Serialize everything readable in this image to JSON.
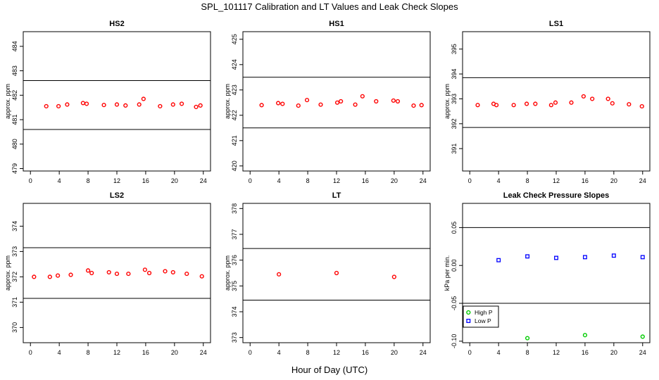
{
  "page": {
    "title": "SPL_101117  Calibration and LT Values and Leak Check Slopes",
    "xlabel": "Hour of Day (UTC)"
  },
  "chart_data": [
    {
      "type": "scatter",
      "title": "HS2",
      "ylabel": "approx. ppm",
      "xlim": [
        -1,
        25
      ],
      "xticks": [
        0,
        4,
        8,
        12,
        16,
        20,
        24
      ],
      "ylim": [
        478.9,
        484.6
      ],
      "yticks": [
        479,
        480,
        481,
        482,
        483,
        484
      ],
      "hlines": [
        480.6,
        482.6
      ],
      "grid": false,
      "series": [
        {
          "color": "#ff0000",
          "marker": "circle",
          "points": [
            [
              2.2,
              481.55
            ],
            [
              3.9,
              481.55
            ],
            [
              5.1,
              481.62
            ],
            [
              7.3,
              481.68
            ],
            [
              7.8,
              481.65
            ],
            [
              10.2,
              481.6
            ],
            [
              12.0,
              481.62
            ],
            [
              13.2,
              481.58
            ],
            [
              15.1,
              481.62
            ],
            [
              15.7,
              481.85
            ],
            [
              18.0,
              481.55
            ],
            [
              19.8,
              481.62
            ],
            [
              21.0,
              481.65
            ],
            [
              23.0,
              481.52
            ],
            [
              23.6,
              481.58
            ]
          ]
        }
      ]
    },
    {
      "type": "scatter",
      "title": "HS1",
      "ylabel": "approx. ppm",
      "xlim": [
        -1,
        25
      ],
      "xticks": [
        0,
        4,
        8,
        12,
        16,
        20,
        24
      ],
      "ylim": [
        419.8,
        425.3
      ],
      "yticks": [
        420,
        421,
        422,
        423,
        424,
        425
      ],
      "hlines": [
        421.5,
        423.5
      ],
      "grid": false,
      "series": [
        {
          "color": "#ff0000",
          "marker": "circle",
          "points": [
            [
              1.6,
              422.4
            ],
            [
              3.9,
              422.48
            ],
            [
              4.5,
              422.45
            ],
            [
              6.7,
              422.38
            ],
            [
              7.9,
              422.6
            ],
            [
              9.8,
              422.42
            ],
            [
              12.1,
              422.5
            ],
            [
              12.6,
              422.55
            ],
            [
              14.6,
              422.42
            ],
            [
              15.6,
              422.75
            ],
            [
              17.5,
              422.55
            ],
            [
              19.9,
              422.58
            ],
            [
              20.5,
              422.55
            ],
            [
              22.7,
              422.38
            ],
            [
              23.8,
              422.4
            ]
          ]
        }
      ]
    },
    {
      "type": "scatter",
      "title": "LS1",
      "ylabel": "approx. ppm",
      "xlim": [
        -1,
        25
      ],
      "xticks": [
        0,
        4,
        8,
        12,
        16,
        20,
        24
      ],
      "ylim": [
        390.1,
        395.7
      ],
      "yticks": [
        391,
        392,
        393,
        394,
        395
      ],
      "hlines": [
        391.85,
        393.85
      ],
      "grid": false,
      "series": [
        {
          "color": "#ff0000",
          "marker": "circle",
          "points": [
            [
              1.1,
              392.75
            ],
            [
              3.3,
              392.8
            ],
            [
              3.7,
              392.75
            ],
            [
              6.1,
              392.75
            ],
            [
              7.9,
              392.8
            ],
            [
              9.1,
              392.8
            ],
            [
              11.3,
              392.75
            ],
            [
              11.9,
              392.85
            ],
            [
              14.1,
              392.85
            ],
            [
              15.8,
              393.1
            ],
            [
              17.0,
              393.0
            ],
            [
              19.2,
              393.0
            ],
            [
              19.8,
              392.82
            ],
            [
              22.1,
              392.78
            ],
            [
              23.9,
              392.7
            ]
          ]
        }
      ]
    },
    {
      "type": "scatter",
      "title": "LS2",
      "ylabel": "approx. ppm",
      "xlim": [
        -1,
        25
      ],
      "xticks": [
        0,
        4,
        8,
        12,
        16,
        20,
        24
      ],
      "ylim": [
        369.4,
        374.9
      ],
      "yticks": [
        370,
        371,
        372,
        373,
        374
      ],
      "hlines": [
        371.15,
        373.15
      ],
      "grid": false,
      "series": [
        {
          "color": "#ff0000",
          "marker": "circle",
          "points": [
            [
              0.5,
              372.0
            ],
            [
              2.7,
              372.0
            ],
            [
              3.8,
              372.05
            ],
            [
              5.6,
              372.08
            ],
            [
              8.0,
              372.25
            ],
            [
              8.5,
              372.15
            ],
            [
              10.9,
              372.18
            ],
            [
              12.0,
              372.12
            ],
            [
              13.6,
              372.12
            ],
            [
              15.9,
              372.28
            ],
            [
              16.5,
              372.15
            ],
            [
              18.7,
              372.22
            ],
            [
              19.8,
              372.18
            ],
            [
              21.7,
              372.12
            ],
            [
              23.8,
              372.02
            ]
          ]
        }
      ]
    },
    {
      "type": "scatter",
      "title": "LT",
      "ylabel": "approx. ppm",
      "xlim": [
        -1,
        25
      ],
      "xticks": [
        0,
        4,
        8,
        12,
        16,
        20,
        24
      ],
      "ylim": [
        372.8,
        378.2
      ],
      "yticks": [
        373,
        374,
        375,
        376,
        377,
        378
      ],
      "hlines": [
        374.45,
        376.45
      ],
      "grid": false,
      "series": [
        {
          "color": "#ff0000",
          "marker": "circle",
          "points": [
            [
              4.0,
              375.45
            ],
            [
              12.0,
              375.5
            ],
            [
              20.0,
              375.35
            ]
          ]
        }
      ]
    },
    {
      "type": "scatter",
      "title": "Leak Check Pressure Slopes",
      "ylabel": "kPa per min.",
      "xlim": [
        -1,
        25
      ],
      "xticks": [
        0,
        4,
        8,
        12,
        16,
        20,
        24
      ],
      "ylim": [
        -0.102,
        0.082
      ],
      "yticks": [
        -0.1,
        -0.05,
        0.0,
        0.05
      ],
      "ytick_labels": [
        "-0.10",
        "-0.05",
        "0.00",
        "0.05"
      ],
      "hlines": [
        -0.05,
        0.05
      ],
      "grid": false,
      "legend": "bottom-left",
      "series": [
        {
          "name": "High P",
          "color": "#00cc00",
          "marker": "circle",
          "points": [
            [
              8.0,
              -0.096
            ],
            [
              16.0,
              -0.092
            ],
            [
              24.0,
              -0.094
            ]
          ]
        },
        {
          "name": "Low P",
          "color": "#0000ff",
          "marker": "square",
          "points": [
            [
              4.0,
              0.007
            ],
            [
              8.0,
              0.012
            ],
            [
              12.0,
              0.01
            ],
            [
              16.0,
              0.011
            ],
            [
              20.0,
              0.013
            ],
            [
              24.0,
              0.011
            ]
          ]
        }
      ]
    }
  ]
}
